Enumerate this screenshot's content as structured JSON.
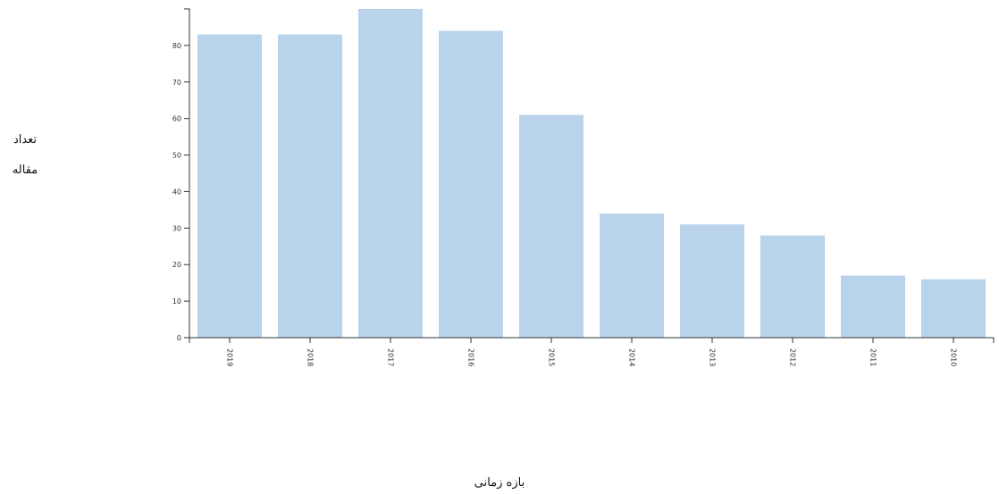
{
  "chart_data": {
    "type": "bar",
    "categories": [
      "2019",
      "2018",
      "2017",
      "2016",
      "2015",
      "2014",
      "2013",
      "2012",
      "2011",
      "2010"
    ],
    "values": [
      83,
      83,
      90,
      84,
      61,
      34,
      31,
      28,
      17,
      16
    ],
    "title": "",
    "xlabel": "بازه زمانی",
    "ylabel_lines": [
      "تعداد",
      "مقاله"
    ],
    "ylim": [
      0,
      90
    ],
    "yticks": [
      0,
      10,
      20,
      30,
      40,
      50,
      60,
      70,
      80
    ],
    "grid": false,
    "colors": {
      "bar": "#b9d3eb",
      "axis": "#333333"
    }
  }
}
